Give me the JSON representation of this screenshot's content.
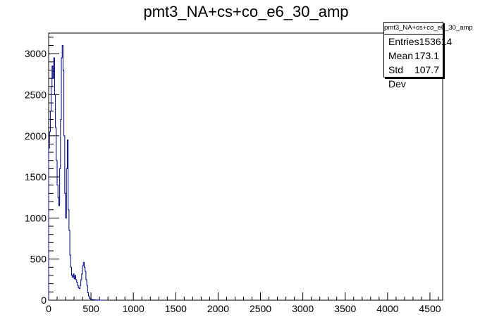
{
  "chart_data": {
    "type": "histogram",
    "title": "pmt3_NA+cs+co_e6_30_amp",
    "xlim": [
      0,
      4650
    ],
    "ylim": [
      0,
      3250
    ],
    "x_ticks": [
      0,
      500,
      1000,
      1500,
      2000,
      2500,
      3000,
      3500,
      4000,
      4500
    ],
    "y_ticks": [
      0,
      500,
      1000,
      1500,
      2000,
      2500,
      3000
    ],
    "line_color": "#000080",
    "x": [
      0,
      10,
      20,
      30,
      40,
      50,
      60,
      70,
      80,
      90,
      100,
      110,
      120,
      130,
      140,
      150,
      160,
      170,
      180,
      190,
      200,
      210,
      220,
      230,
      240,
      250,
      260,
      270,
      280,
      290,
      300,
      310,
      320,
      330,
      340,
      350,
      360,
      370,
      380,
      390,
      400,
      410,
      420,
      430,
      440,
      450,
      460,
      470,
      480,
      490,
      500,
      510,
      520,
      530,
      540,
      550,
      560,
      570,
      580,
      590,
      600,
      610,
      620,
      630,
      640,
      650,
      660
    ],
    "values": [
      1850,
      2050,
      2300,
      2600,
      2850,
      2700,
      2950,
      2500,
      2100,
      1700,
      1400,
      1250,
      1150,
      1600,
      2200,
      2950,
      3100,
      2800,
      2000,
      1300,
      1000,
      1600,
      1950,
      1100,
      850,
      550,
      400,
      300,
      280,
      320,
      260,
      300,
      250,
      220,
      180,
      150,
      140,
      180,
      250,
      320,
      420,
      460,
      400,
      350,
      250,
      180,
      90,
      50,
      25,
      15,
      10,
      8,
      6,
      5,
      4,
      3,
      2,
      2,
      1,
      1,
      0,
      0,
      0,
      0,
      0,
      0,
      0
    ],
    "stats": {
      "title": "pmt3_NA+cs+co_e6_30_amp",
      "rows": [
        {
          "label": "Entries",
          "value": "153614"
        },
        {
          "label": "Mean",
          "value": "173.1"
        },
        {
          "label": "Std Dev",
          "value": "107.7"
        }
      ]
    }
  }
}
